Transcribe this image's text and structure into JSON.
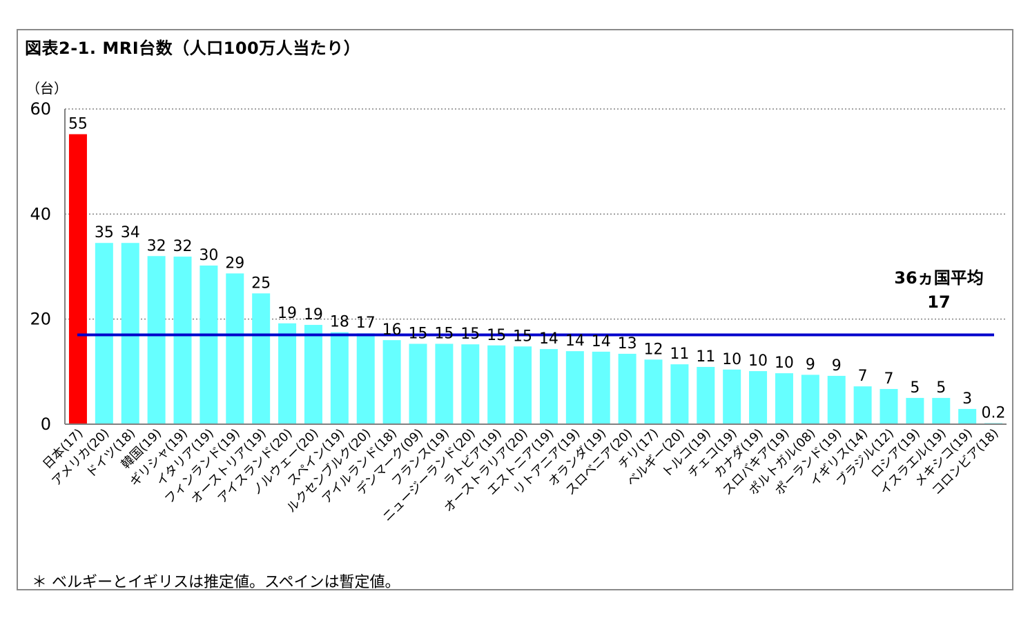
{
  "title": "図表2-1. MRI台数（人口100万人当たり）",
  "unit_label": "（台）",
  "footnote": "＊ ベルギーとイギリスは推定値。スペインは暫定値。",
  "colors": {
    "highlight": "#ff0000",
    "bar": "#66ffff",
    "average_line": "#0000cc",
    "grid": "#808080"
  },
  "chart_data": {
    "type": "bar",
    "title": "図表2-1. MRI台数（人口100万人当たり）",
    "ylabel": "（台）",
    "ylim": [
      0,
      60
    ],
    "yticks": [
      "0",
      "20",
      "40",
      "60"
    ],
    "grid": "horizontal dotted",
    "categories": [
      "日本(17)",
      "アメリカ(20)",
      "ドイツ(18)",
      "韓国(19)",
      "ギリシャ(19)",
      "イタリア(19)",
      "フィンランド(19)",
      "オーストリア(19)",
      "アイスランド(20)",
      "ノルウェー(20)",
      "スペイン(19)",
      "ルクセンブルク(20)",
      "アイルランド(18)",
      "デンマーク(09)",
      "フランス(19)",
      "ニュージーランド(20)",
      "ラトビア(19)",
      "オーストラリア(20)",
      "エストニア(19)",
      "リトアニア(19)",
      "オランダ(19)",
      "スロベニア(20)",
      "チリ(17)",
      "ベルギー(20)",
      "トルコ(19)",
      "チェコ(19)",
      "カナダ(19)",
      "スロバキア(19)",
      "ポルトガル(08)",
      "ポーランド(19)",
      "イギリス(14)",
      "ブラジル(12)",
      "ロシア(19)",
      "イスラエル(19)",
      "メキシコ(19)",
      "コロンビア(18)"
    ],
    "values": [
      55.2,
      34.5,
      34.5,
      32.0,
      31.9,
      30.2,
      28.7,
      24.9,
      19.2,
      18.9,
      17.5,
      17.3,
      16.0,
      15.3,
      15.3,
      15.2,
      15.0,
      14.8,
      14.3,
      13.9,
      13.8,
      13.4,
      12.3,
      11.4,
      10.9,
      10.4,
      10.1,
      9.7,
      9.4,
      9.2,
      7.2,
      6.7,
      5.0,
      5.0,
      2.9,
      0.2
    ],
    "data_labels": [
      "55",
      "35",
      "34",
      "32",
      "32",
      "30",
      "29",
      "25",
      "19",
      "19",
      "18",
      "17",
      "16",
      "15",
      "15",
      "15",
      "15",
      "15",
      "14",
      "14",
      "14",
      "13",
      "12",
      "11",
      "11",
      "10",
      "10",
      "10",
      "9",
      "9",
      "7",
      "7",
      "5",
      "5",
      "3",
      "0.2"
    ],
    "highlight_index": 0,
    "average": {
      "label": "36ヵ国平均",
      "value": 17,
      "value_label": "17"
    }
  }
}
